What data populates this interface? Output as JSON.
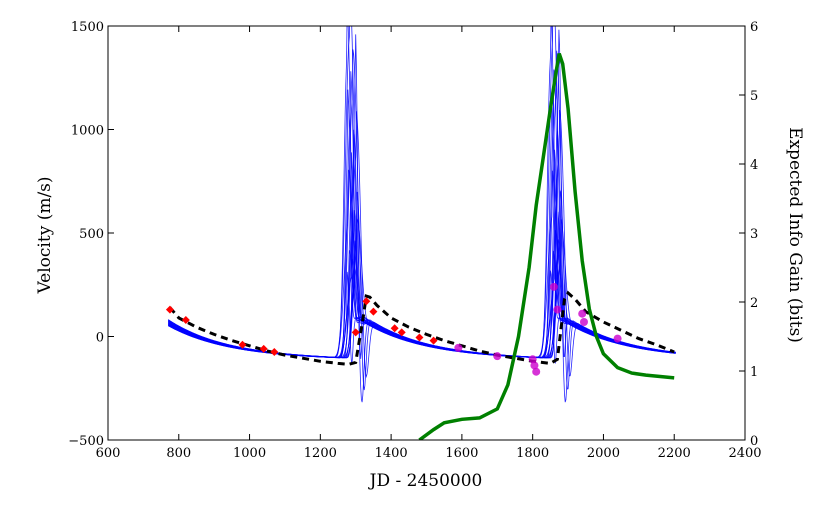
{
  "chart_data": {
    "type": "line",
    "title": "",
    "xlabel": "JD - 2450000",
    "ylabel": "Velocity (m/s)",
    "y2label": "Expected Info Gain (bits)",
    "xlim": [
      600,
      2400
    ],
    "ylim": [
      -500,
      1500
    ],
    "y2lim": [
      0,
      6
    ],
    "x_ticks": [
      600,
      800,
      1000,
      1200,
      1400,
      1600,
      1800,
      2000,
      2200,
      2400
    ],
    "y_ticks": [
      -500,
      0,
      500,
      1000,
      1500
    ],
    "y2_ticks": [
      0,
      1,
      2,
      3,
      4,
      5,
      6
    ],
    "grid": false,
    "colors": {
      "model_samples": "#0000ff",
      "best_fit": "#000000",
      "info_gain": "#008000",
      "observations": "#ff0000",
      "future_observations": "#cc00cc"
    },
    "model_params": {
      "period_days": 570,
      "peaks_jd": [
        1290,
        1865
      ],
      "sample_count": 18
    },
    "series": [
      {
        "kind": "best_fit",
        "points": [
          [
            775,
            140
          ],
          [
            800,
            90
          ],
          [
            850,
            45
          ],
          [
            900,
            10
          ],
          [
            950,
            -20
          ],
          [
            1000,
            -45
          ],
          [
            1050,
            -70
          ],
          [
            1100,
            -90
          ],
          [
            1150,
            -105
          ],
          [
            1200,
            -120
          ],
          [
            1250,
            -130
          ],
          [
            1280,
            -135
          ],
          [
            1300,
            -125
          ],
          [
            1320,
            80
          ],
          [
            1330,
            195
          ],
          [
            1340,
            190
          ],
          [
            1360,
            150
          ],
          [
            1400,
            90
          ],
          [
            1450,
            45
          ],
          [
            1500,
            10
          ],
          [
            1550,
            -20
          ],
          [
            1600,
            -45
          ],
          [
            1650,
            -70
          ],
          [
            1700,
            -90
          ],
          [
            1750,
            -105
          ],
          [
            1800,
            -120
          ],
          [
            1850,
            -130
          ],
          [
            1870,
            -110
          ],
          [
            1890,
            180
          ],
          [
            1900,
            210
          ],
          [
            1920,
            180
          ],
          [
            1950,
            120
          ],
          [
            2000,
            70
          ],
          [
            2050,
            30
          ],
          [
            2100,
            -10
          ],
          [
            2150,
            -40
          ],
          [
            2200,
            -75
          ]
        ]
      },
      {
        "kind": "info_gain",
        "points": [
          [
            1480,
            0
          ],
          [
            1520,
            0.15
          ],
          [
            1550,
            0.25
          ],
          [
            1600,
            0.3
          ],
          [
            1650,
            0.32
          ],
          [
            1700,
            0.45
          ],
          [
            1730,
            0.8
          ],
          [
            1760,
            1.5
          ],
          [
            1790,
            2.5
          ],
          [
            1810,
            3.4
          ],
          [
            1830,
            4.1
          ],
          [
            1850,
            4.8
          ],
          [
            1865,
            5.3
          ],
          [
            1875,
            5.6
          ],
          [
            1885,
            5.45
          ],
          [
            1900,
            4.8
          ],
          [
            1920,
            3.6
          ],
          [
            1940,
            2.6
          ],
          [
            1960,
            1.9
          ],
          [
            1980,
            1.5
          ],
          [
            2000,
            1.25
          ],
          [
            2040,
            1.05
          ],
          [
            2080,
            0.97
          ],
          [
            2120,
            0.94
          ],
          [
            2160,
            0.92
          ],
          [
            2200,
            0.9
          ]
        ]
      }
    ],
    "observations": [
      [
        775,
        130
      ],
      [
        820,
        80
      ],
      [
        980,
        -40
      ],
      [
        1040,
        -60
      ],
      [
        1070,
        -75
      ],
      [
        1300,
        20
      ],
      [
        1330,
        170
      ],
      [
        1350,
        120
      ],
      [
        1410,
        40
      ],
      [
        1430,
        20
      ],
      [
        1480,
        -5
      ],
      [
        1520,
        -20
      ]
    ],
    "future_observations": [
      [
        1590,
        -55
      ],
      [
        1700,
        -95
      ],
      [
        1800,
        -110
      ],
      [
        1805,
        -140
      ],
      [
        1810,
        -170
      ],
      [
        1860,
        240
      ],
      [
        1870,
        130
      ],
      [
        1940,
        110
      ],
      [
        1945,
        70
      ],
      [
        2040,
        -10
      ]
    ]
  }
}
